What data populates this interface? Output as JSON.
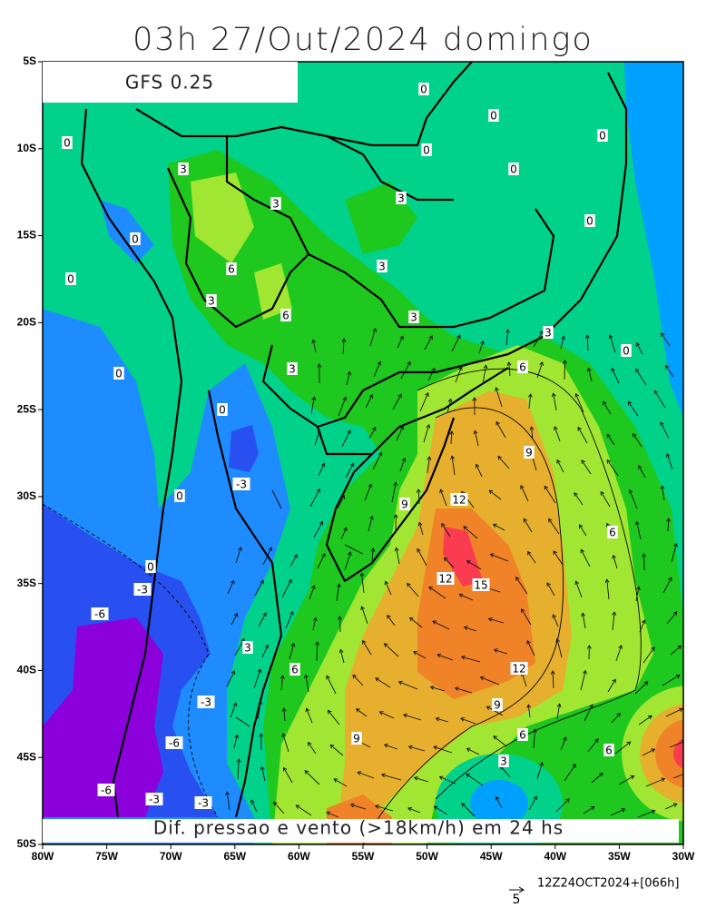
{
  "header": {
    "title": "03h 27/Out/2024 domingo"
  },
  "map": {
    "model_label": "GFS 0.25",
    "caption": "Dif. pressao e vento (>18km/h) em 24 hs",
    "lat_ticks": [
      "5S",
      "10S",
      "15S",
      "20S",
      "25S",
      "30S",
      "35S",
      "40S",
      "45S",
      "50S"
    ],
    "lon_ticks": [
      "80W",
      "75W",
      "70W",
      "65W",
      "60W",
      "55W",
      "50W",
      "45W",
      "40W",
      "35W",
      "30W"
    ],
    "contour_labels": [
      "0",
      "0",
      "0",
      "0",
      "0",
      "0",
      "3",
      "3",
      "3",
      "0",
      "0",
      "3",
      "6",
      "0",
      "3",
      "6",
      "3",
      "3",
      "0",
      "0",
      "3",
      "6",
      "0",
      "9",
      "-3",
      "9",
      "12",
      "0",
      "6",
      "0",
      "12",
      "15",
      "-3",
      "-6",
      "3",
      "6",
      "12",
      "-3",
      "9",
      "9",
      "6",
      "-6",
      "6",
      "3",
      "-6",
      "-3",
      "-3"
    ]
  },
  "footer": {
    "vector_scale": "5",
    "run": "12Z24OCT2024+[066h]"
  }
}
